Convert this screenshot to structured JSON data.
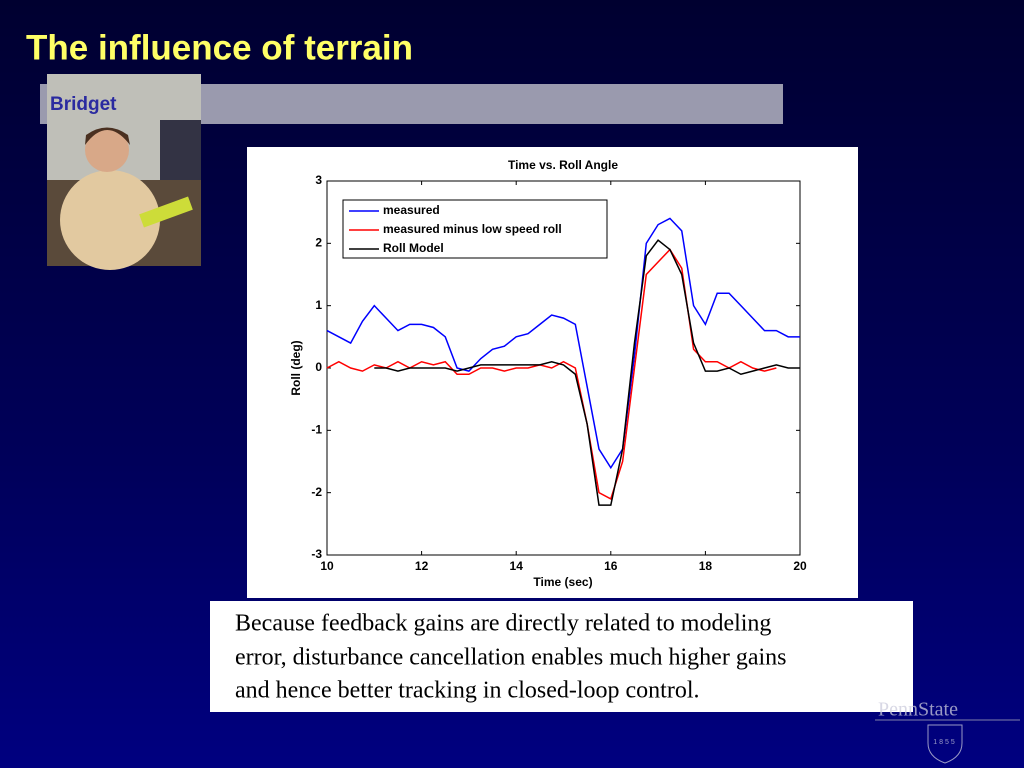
{
  "slide": {
    "title": "The influence of terrain",
    "label": "Bridget",
    "caption": [
      "Because feedback gains are directly related to modeling",
      "error, disturbance cancellation enables much higher gains",
      "and hence better tracking in closed-loop control."
    ],
    "logo": "PennState",
    "logo_year": "1855"
  },
  "chart_data": {
    "type": "line",
    "title": "Time vs. Roll Angle",
    "xlabel": "Time (sec)",
    "ylabel": "Roll (deg)",
    "x": [
      10,
      10.25,
      10.5,
      10.75,
      11,
      11.25,
      11.5,
      11.75,
      12,
      12.25,
      12.5,
      12.75,
      13,
      13.25,
      13.5,
      13.75,
      14,
      14.25,
      14.5,
      14.75,
      15,
      15.25,
      15.5,
      15.75,
      16,
      16.25,
      16.5,
      16.75,
      17,
      17.25,
      17.5,
      17.75,
      18,
      18.25,
      18.5,
      18.75,
      19,
      19.25,
      19.5,
      19.75,
      20
    ],
    "series": [
      {
        "name": "measured",
        "color": "#0000ff",
        "values": [
          0.6,
          0.5,
          0.4,
          0.75,
          1.0,
          0.8,
          0.6,
          0.7,
          0.7,
          0.65,
          0.5,
          0.0,
          -0.05,
          0.15,
          0.3,
          0.35,
          0.5,
          0.55,
          0.7,
          0.85,
          0.8,
          0.7,
          -0.3,
          -1.3,
          -1.6,
          -1.3,
          0.2,
          2.0,
          2.3,
          2.4,
          2.2,
          1.0,
          0.7,
          1.2,
          1.2,
          1.0,
          0.8,
          0.6,
          0.6,
          0.5,
          0.5
        ]
      },
      {
        "name": "measured minus low speed roll",
        "color": "#ff0000",
        "values": [
          0.0,
          0.1,
          0.0,
          -0.05,
          0.05,
          0.0,
          0.1,
          0.0,
          0.1,
          0.05,
          0.1,
          -0.1,
          -0.1,
          0.0,
          0.0,
          -0.05,
          0.0,
          0.0,
          0.05,
          0.0,
          0.1,
          0.0,
          -0.9,
          -2.0,
          -2.1,
          -1.5,
          0.0,
          1.5,
          1.7,
          1.9,
          1.6,
          0.3,
          0.1,
          0.1,
          0.0,
          0.1,
          0.0,
          -0.05,
          0.0,
          null,
          null
        ]
      },
      {
        "name": "Roll Model",
        "color": "#000000",
        "values": [
          null,
          null,
          null,
          null,
          0.0,
          0.0,
          -0.05,
          0.0,
          0.0,
          0.0,
          0.0,
          -0.05,
          0.0,
          0.05,
          0.05,
          0.05,
          0.05,
          0.05,
          0.05,
          0.1,
          0.05,
          -0.1,
          -0.9,
          -2.2,
          -2.2,
          -1.3,
          0.4,
          1.8,
          2.05,
          1.9,
          1.5,
          0.4,
          -0.05,
          -0.05,
          0.0,
          -0.1,
          -0.05,
          0.0,
          0.05,
          0.0,
          0.0
        ]
      }
    ],
    "xlim": [
      10,
      20
    ],
    "xticks": [
      10,
      12,
      14,
      16,
      18,
      20
    ],
    "ylim": [
      -3,
      3
    ],
    "yticks": [
      -3,
      -2,
      -1,
      0,
      1,
      2,
      3
    ],
    "legend": "upper left"
  }
}
